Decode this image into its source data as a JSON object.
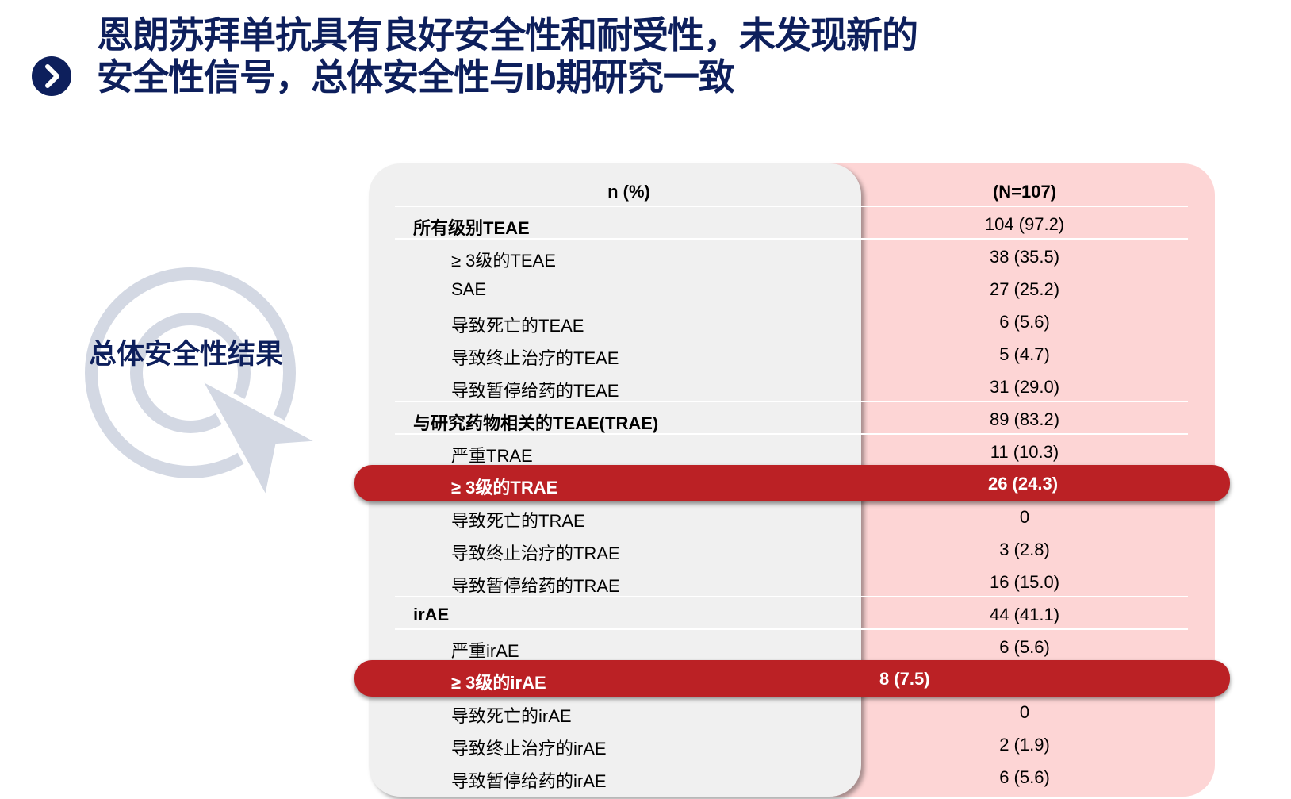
{
  "title": {
    "line1": "恩朗苏拜单抗具有良好安全性和耐受性，未发现新的",
    "line2": "安全性信号，总体安全性与Ib期研究一致"
  },
  "side_label": "总体安全性结果",
  "colors": {
    "navy": "#0d1f5c",
    "highlight": "#bb2125",
    "pink": "#fdd5d5",
    "grey": "#f0f0f0"
  },
  "table": {
    "header": {
      "label": "n (%)",
      "value": "(N=107)"
    },
    "rows": [
      {
        "label": "所有级别TEAE",
        "value": "104 (97.2)",
        "type": "group"
      },
      {
        "label": "≥ 3级的TEAE",
        "value": "38 (35.5)",
        "type": "sub"
      },
      {
        "label": "SAE",
        "value": "27 (25.2)",
        "type": "sub"
      },
      {
        "label": "导致死亡的TEAE",
        "value": "6 (5.6)",
        "type": "sub"
      },
      {
        "label": "导致终止治疗的TEAE",
        "value": "5 (4.7)",
        "type": "sub"
      },
      {
        "label": "导致暂停给药的TEAE",
        "value": "31 (29.0)",
        "type": "sub"
      },
      {
        "label": "与研究药物相关的TEAE(TRAE)",
        "value": "89 (83.2)",
        "type": "group"
      },
      {
        "label": "严重TRAE",
        "value": "11 (10.3)",
        "type": "sub"
      },
      {
        "label": "≥ 3级的TRAE",
        "value": "26 (24.3)",
        "type": "highlight"
      },
      {
        "label": "导致死亡的TRAE",
        "value": "0",
        "type": "sub"
      },
      {
        "label": "导致终止治疗的TRAE",
        "value": "3 (2.8)",
        "type": "sub"
      },
      {
        "label": "导致暂停给药的TRAE",
        "value": "16 (15.0)",
        "type": "sub"
      },
      {
        "label": "irAE",
        "value": "44 (41.1)",
        "type": "group"
      },
      {
        "label": "严重irAE",
        "value": "6 (5.6)",
        "type": "sub"
      },
      {
        "label": "≥ 3级的irAE",
        "value": "8 (7.5)",
        "type": "highlight-left"
      },
      {
        "label": "导致死亡的irAE",
        "value": "0",
        "type": "sub"
      },
      {
        "label": "导致终止治疗的irAE",
        "value": "2 (1.9)",
        "type": "sub"
      },
      {
        "label": "导致暂停给药的irAE",
        "value": "6 (5.6)",
        "type": "sub"
      }
    ]
  }
}
